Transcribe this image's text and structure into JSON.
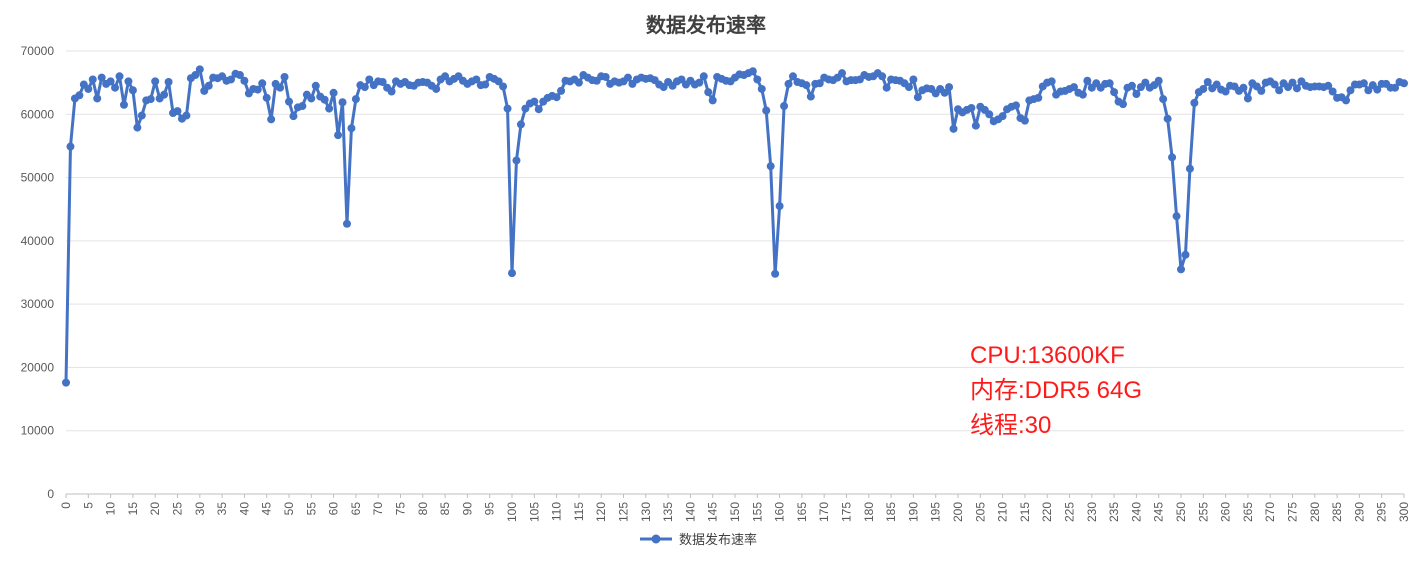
{
  "chart_data": {
    "type": "line",
    "title": "数据发布速率",
    "xlabel": "",
    "ylabel": "",
    "xlim": [
      0,
      300
    ],
    "ylim": [
      0,
      70000
    ],
    "yticks": [
      0,
      10000,
      20000,
      30000,
      40000,
      50000,
      60000,
      70000
    ],
    "xtick_step": 5,
    "grid": "horizontal",
    "legend": {
      "position": "bottom"
    },
    "series": [
      {
        "name": "数据发布速率",
        "color": "#4472c4",
        "keypoints": [
          [
            0,
            17600
          ],
          [
            1,
            54900
          ],
          [
            2,
            62500
          ],
          [
            3,
            63000
          ],
          [
            4,
            64700
          ],
          [
            5,
            64000
          ],
          [
            6,
            65500
          ],
          [
            7,
            62500
          ],
          [
            8,
            65800
          ],
          [
            9,
            64800
          ],
          [
            10,
            65200
          ],
          [
            11,
            64200
          ],
          [
            12,
            66000
          ],
          [
            13,
            61500
          ],
          [
            14,
            65200
          ],
          [
            15,
            63800
          ],
          [
            16,
            57900
          ],
          [
            17,
            59800
          ],
          [
            18,
            62200
          ],
          [
            19,
            62400
          ],
          [
            20,
            65200
          ],
          [
            21,
            62500
          ],
          [
            22,
            63100
          ],
          [
            23,
            65100
          ],
          [
            24,
            60200
          ],
          [
            25,
            60500
          ],
          [
            26,
            59300
          ],
          [
            27,
            59800
          ],
          [
            28,
            65700
          ],
          [
            29,
            66200
          ],
          [
            30,
            67100
          ],
          [
            31,
            63700
          ],
          [
            32,
            64500
          ],
          [
            33,
            65800
          ],
          [
            34,
            65700
          ],
          [
            35,
            66000
          ],
          [
            36,
            65300
          ],
          [
            37,
            65500
          ],
          [
            38,
            66400
          ],
          [
            39,
            66200
          ],
          [
            40,
            65300
          ],
          [
            41,
            63300
          ],
          [
            42,
            64000
          ],
          [
            43,
            63900
          ],
          [
            44,
            64900
          ],
          [
            45,
            62600
          ],
          [
            46,
            59200
          ],
          [
            47,
            64800
          ],
          [
            48,
            64200
          ],
          [
            49,
            65900
          ],
          [
            50,
            62000
          ],
          [
            51,
            59700
          ],
          [
            52,
            61100
          ],
          [
            53,
            61300
          ],
          [
            54,
            63100
          ],
          [
            55,
            62500
          ],
          [
            56,
            64500
          ],
          [
            57,
            62800
          ],
          [
            58,
            62300
          ],
          [
            59,
            60900
          ],
          [
            60,
            63400
          ],
          [
            61,
            56700
          ],
          [
            62,
            61900
          ],
          [
            63,
            42700
          ],
          [
            64,
            57800
          ],
          [
            65,
            62400
          ],
          [
            66,
            64600
          ],
          [
            67,
            64300
          ],
          [
            68,
            65500
          ],
          [
            69,
            64600
          ],
          [
            70,
            65200
          ],
          [
            71,
            65100
          ],
          [
            72,
            64200
          ],
          [
            73,
            63600
          ],
          [
            74,
            65200
          ],
          [
            75,
            64800
          ],
          [
            76,
            65100
          ],
          [
            77,
            64600
          ],
          [
            78,
            64500
          ],
          [
            79,
            65000
          ],
          [
            80,
            65100
          ],
          [
            81,
            65000
          ],
          [
            82,
            64500
          ],
          [
            83,
            64000
          ],
          [
            84,
            65500
          ],
          [
            85,
            66000
          ],
          [
            86,
            65200
          ],
          [
            87,
            65600
          ],
          [
            88,
            66000
          ],
          [
            89,
            65300
          ],
          [
            90,
            64800
          ],
          [
            91,
            65200
          ],
          [
            92,
            65500
          ],
          [
            93,
            64600
          ],
          [
            94,
            64700
          ],
          [
            95,
            65900
          ],
          [
            96,
            65600
          ],
          [
            97,
            65200
          ],
          [
            98,
            64400
          ],
          [
            99,
            60900
          ],
          [
            100,
            34900
          ],
          [
            101,
            52700
          ],
          [
            102,
            58400
          ],
          [
            103,
            60900
          ],
          [
            104,
            61700
          ],
          [
            105,
            62000
          ],
          [
            106,
            60800
          ],
          [
            107,
            62000
          ],
          [
            108,
            62600
          ],
          [
            109,
            62900
          ],
          [
            110,
            62700
          ],
          [
            111,
            63700
          ],
          [
            112,
            65300
          ],
          [
            113,
            65200
          ],
          [
            114,
            65500
          ],
          [
            115,
            65000
          ],
          [
            116,
            66200
          ],
          [
            117,
            65800
          ],
          [
            118,
            65400
          ],
          [
            119,
            65300
          ],
          [
            120,
            66000
          ],
          [
            121,
            65900
          ],
          [
            122,
            64800
          ],
          [
            123,
            65200
          ],
          [
            124,
            65000
          ],
          [
            125,
            65200
          ],
          [
            126,
            65800
          ],
          [
            127,
            64800
          ],
          [
            128,
            65500
          ],
          [
            129,
            65800
          ],
          [
            130,
            65600
          ],
          [
            131,
            65700
          ],
          [
            132,
            65400
          ],
          [
            133,
            64700
          ],
          [
            134,
            64300
          ],
          [
            135,
            65100
          ],
          [
            136,
            64500
          ],
          [
            137,
            65200
          ],
          [
            138,
            65500
          ],
          [
            139,
            64700
          ],
          [
            140,
            65300
          ],
          [
            141,
            64700
          ],
          [
            142,
            65000
          ],
          [
            143,
            66000
          ],
          [
            144,
            63500
          ],
          [
            145,
            62200
          ],
          [
            146,
            65900
          ],
          [
            147,
            65600
          ],
          [
            148,
            65300
          ],
          [
            149,
            65200
          ],
          [
            150,
            65800
          ],
          [
            151,
            66300
          ],
          [
            152,
            66200
          ],
          [
            153,
            66500
          ],
          [
            154,
            66800
          ],
          [
            155,
            65500
          ],
          [
            156,
            64000
          ],
          [
            157,
            60600
          ],
          [
            158,
            51800
          ],
          [
            159,
            34800
          ],
          [
            160,
            45500
          ],
          [
            161,
            61300
          ],
          [
            162,
            64800
          ],
          [
            163,
            66000
          ],
          [
            164,
            65100
          ],
          [
            165,
            64900
          ],
          [
            166,
            64600
          ],
          [
            167,
            62800
          ],
          [
            168,
            64800
          ],
          [
            169,
            64900
          ],
          [
            170,
            65800
          ],
          [
            171,
            65500
          ],
          [
            172,
            65400
          ],
          [
            173,
            65800
          ],
          [
            174,
            66500
          ],
          [
            175,
            65200
          ],
          [
            176,
            65400
          ],
          [
            177,
            65400
          ],
          [
            178,
            65500
          ],
          [
            179,
            66200
          ],
          [
            180,
            65900
          ],
          [
            181,
            66000
          ],
          [
            182,
            66500
          ],
          [
            183,
            66000
          ],
          [
            184,
            64200
          ],
          [
            185,
            65500
          ],
          [
            186,
            65400
          ],
          [
            187,
            65300
          ],
          [
            188,
            64900
          ],
          [
            189,
            64300
          ],
          [
            190,
            65500
          ],
          [
            191,
            62700
          ],
          [
            192,
            63800
          ],
          [
            193,
            64100
          ],
          [
            194,
            64000
          ],
          [
            195,
            63300
          ],
          [
            196,
            64000
          ],
          [
            197,
            63400
          ],
          [
            198,
            64300
          ],
          [
            199,
            57700
          ],
          [
            200,
            60800
          ],
          [
            201,
            60300
          ],
          [
            202,
            60700
          ],
          [
            203,
            61000
          ],
          [
            204,
            58200
          ],
          [
            205,
            61200
          ],
          [
            206,
            60700
          ],
          [
            207,
            60000
          ],
          [
            208,
            58900
          ],
          [
            209,
            59200
          ],
          [
            210,
            59700
          ],
          [
            211,
            60800
          ],
          [
            212,
            61200
          ],
          [
            213,
            61400
          ],
          [
            214,
            59400
          ],
          [
            215,
            59000
          ],
          [
            216,
            62200
          ],
          [
            217,
            62400
          ],
          [
            218,
            62600
          ],
          [
            219,
            64400
          ],
          [
            220,
            65000
          ],
          [
            221,
            65200
          ],
          [
            222,
            63100
          ],
          [
            223,
            63600
          ],
          [
            224,
            63700
          ],
          [
            225,
            64000
          ],
          [
            226,
            64300
          ],
          [
            227,
            63400
          ],
          [
            228,
            63100
          ],
          [
            229,
            65300
          ],
          [
            230,
            64200
          ],
          [
            231,
            64900
          ],
          [
            232,
            64200
          ],
          [
            233,
            64800
          ],
          [
            234,
            64900
          ],
          [
            235,
            63500
          ],
          [
            236,
            62000
          ],
          [
            237,
            61600
          ],
          [
            238,
            64200
          ],
          [
            239,
            64500
          ],
          [
            240,
            63200
          ],
          [
            241,
            64300
          ],
          [
            242,
            65000
          ],
          [
            243,
            64200
          ],
          [
            244,
            64600
          ],
          [
            245,
            65300
          ],
          [
            246,
            62400
          ],
          [
            247,
            59300
          ],
          [
            248,
            53200
          ],
          [
            249,
            43900
          ],
          [
            250,
            35500
          ],
          [
            251,
            37800
          ],
          [
            252,
            51400
          ],
          [
            253,
            61800
          ],
          [
            254,
            63500
          ],
          [
            255,
            64000
          ],
          [
            256,
            65100
          ],
          [
            257,
            64100
          ],
          [
            258,
            64700
          ],
          [
            259,
            63900
          ],
          [
            260,
            63600
          ],
          [
            261,
            64500
          ],
          [
            262,
            64400
          ],
          [
            263,
            63700
          ],
          [
            264,
            64200
          ],
          [
            265,
            62500
          ],
          [
            266,
            64900
          ],
          [
            267,
            64400
          ],
          [
            268,
            63700
          ],
          [
            269,
            65000
          ],
          [
            270,
            65200
          ],
          [
            271,
            64700
          ],
          [
            272,
            63800
          ],
          [
            273,
            64900
          ],
          [
            274,
            64300
          ],
          [
            275,
            65000
          ],
          [
            276,
            64100
          ],
          [
            277,
            65200
          ],
          [
            278,
            64500
          ],
          [
            279,
            64300
          ],
          [
            280,
            64400
          ],
          [
            281,
            64400
          ],
          [
            282,
            64300
          ],
          [
            283,
            64500
          ],
          [
            284,
            63600
          ],
          [
            285,
            62600
          ],
          [
            286,
            62700
          ],
          [
            287,
            62200
          ],
          [
            288,
            63800
          ],
          [
            289,
            64700
          ],
          [
            290,
            64700
          ],
          [
            291,
            64900
          ],
          [
            292,
            63800
          ],
          [
            293,
            64600
          ],
          [
            294,
            63900
          ],
          [
            295,
            64800
          ],
          [
            296,
            64800
          ],
          [
            297,
            64200
          ],
          [
            298,
            64200
          ],
          [
            299,
            65100
          ],
          [
            300,
            64900
          ]
        ]
      }
    ],
    "annotations": [
      "CPU:13600KF",
      "内存:DDR5 64G",
      "线程:30"
    ]
  }
}
